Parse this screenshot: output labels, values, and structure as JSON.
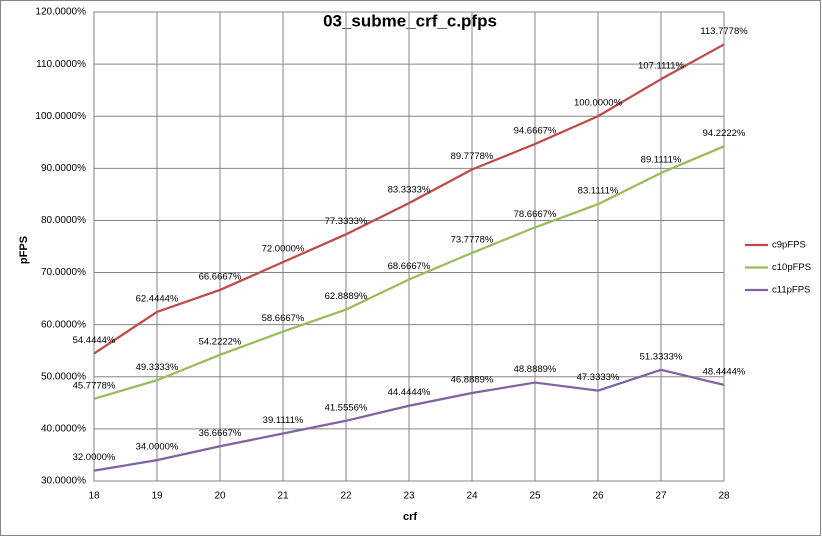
{
  "chart_data": {
    "type": "line",
    "title": "03_subme_crf_c.pfps",
    "x_label": "crf",
    "y_label": "pFPS",
    "x": [
      18,
      19,
      20,
      21,
      22,
      23,
      24,
      25,
      26,
      27,
      28
    ],
    "xlim": [
      18,
      28
    ],
    "xticks": [
      18,
      19,
      20,
      21,
      22,
      23,
      24,
      25,
      26,
      27,
      28
    ],
    "ylim": [
      30,
      120
    ],
    "yticks": [
      {
        "value": 30,
        "label": "30.0000%"
      },
      {
        "value": 40,
        "label": "40.0000%"
      },
      {
        "value": 50,
        "label": "50.0000%"
      },
      {
        "value": 60,
        "label": "60.0000%"
      },
      {
        "value": 70,
        "label": "70.0000%"
      },
      {
        "value": 80,
        "label": "80.0000%"
      },
      {
        "value": 90,
        "label": "90.0000%"
      },
      {
        "value": 100,
        "label": "100.0000%"
      },
      {
        "value": 110,
        "label": "110.0000%"
      },
      {
        "value": 120,
        "label": "120.0000%"
      }
    ],
    "grid": true,
    "legend": "right",
    "series": [
      {
        "name": "c9pFPS",
        "color": "#be4b48",
        "values": [
          54.4444,
          62.4444,
          66.6667,
          72.0,
          77.3333,
          83.3333,
          89.7778,
          94.6667,
          100.0,
          107.1111,
          113.7778
        ],
        "value_labels": [
          "54.4444%",
          "62.4444%",
          "66.6667%",
          "72.0000%",
          "77.3333%",
          "83.3333%",
          "89.7778%",
          "94.6667%",
          "100.0000%",
          "107.1111%",
          "113.7778%"
        ]
      },
      {
        "name": "c10pFPS",
        "color": "#9bbb59",
        "values": [
          45.7778,
          49.3333,
          54.2222,
          58.6667,
          62.8889,
          68.6667,
          73.7778,
          78.6667,
          83.1111,
          89.1111,
          94.2222
        ],
        "value_labels": [
          "45.7778%",
          "49.3333%",
          "54.2222%",
          "58.6667%",
          "62.8889%",
          "68.6667%",
          "73.7778%",
          "78.6667%",
          "83.1111%",
          "89.1111%",
          "94.2222%"
        ]
      },
      {
        "name": "c11pFPS",
        "color": "#8064a2",
        "values": [
          32.0,
          34.0,
          36.6667,
          39.1111,
          41.5556,
          44.4444,
          46.8889,
          48.8889,
          47.3333,
          51.3333,
          48.4444
        ],
        "value_labels": [
          "32.0000%",
          "34.0000%",
          "36.6667%",
          "39.1111%",
          "41.5556%",
          "44.4444%",
          "46.8889%",
          "48.8889%",
          "47.3333%",
          "51.3333%",
          "48.4444%"
        ]
      }
    ]
  }
}
